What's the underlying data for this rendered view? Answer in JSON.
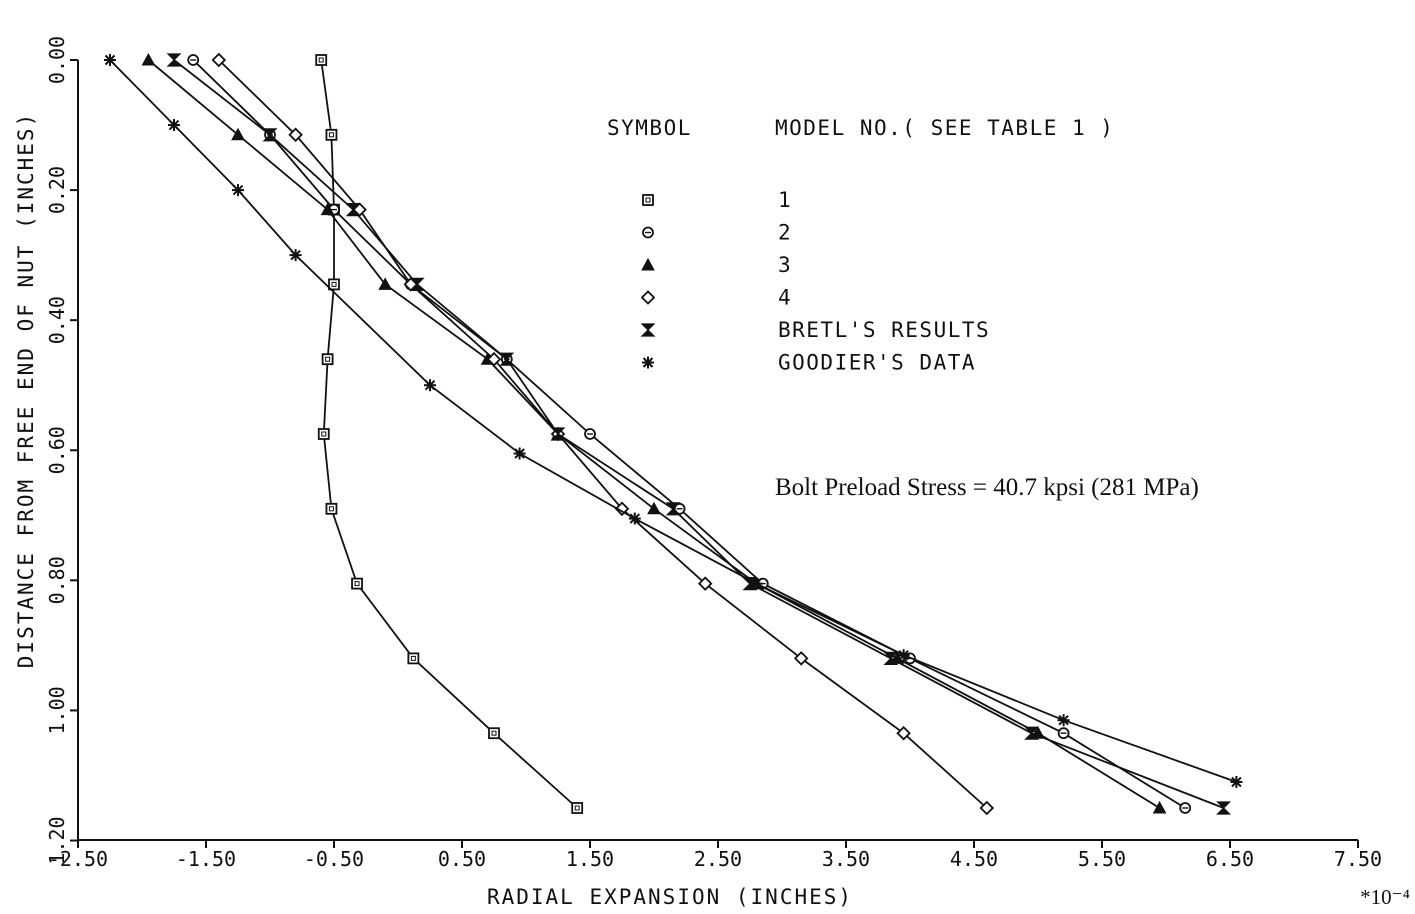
{
  "chart_data": {
    "type": "line",
    "xlabel": "RADIAL EXPANSION (INCHES)",
    "ylabel": "DISTANCE FROM FREE END OF NUT (INCHES)",
    "x_multiplier": "*10⁻⁴",
    "xlim": [
      -2.5,
      7.5
    ],
    "ylim": [
      1.2,
      0.0
    ],
    "y_inverted": true,
    "grid": false,
    "x_tick_labels": [
      "-2.50",
      "-1.50",
      "-0.50",
      "0.50",
      "1.50",
      "2.50",
      "3.50",
      "4.50",
      "5.50",
      "6.50",
      "7.50"
    ],
    "y_tick_labels": [
      "0.00",
      "0.20",
      "0.40",
      "0.60",
      "0.80",
      "1.00",
      "1.20"
    ],
    "legend_header": {
      "symbol": "SYMBOL",
      "model": "MODEL NO.( SEE TABLE 1 )"
    },
    "annotation": "Bolt Preload Stress = 40.7 kpsi (281 MPa)",
    "series": [
      {
        "name": "1",
        "marker": "square",
        "x": [
          -0.6,
          -0.52,
          -0.5,
          -0.5,
          -0.55,
          -0.58,
          -0.52,
          -0.32,
          0.12,
          0.75,
          1.4
        ],
        "y": [
          0.0,
          0.115,
          0.23,
          0.345,
          0.46,
          0.575,
          0.69,
          0.805,
          0.92,
          1.035,
          1.15
        ]
      },
      {
        "name": "2",
        "marker": "circle",
        "x": [
          -1.6,
          -1.0,
          -0.5,
          0.1,
          0.85,
          1.5,
          2.2,
          2.85,
          4.0,
          5.2,
          6.15
        ],
        "y": [
          0.0,
          0.115,
          0.23,
          0.345,
          0.46,
          0.575,
          0.69,
          0.805,
          0.92,
          1.035,
          1.15
        ]
      },
      {
        "name": "3",
        "marker": "triangle",
        "x": [
          -1.95,
          -1.25,
          -0.55,
          -0.1,
          0.7,
          1.25,
          2.0,
          2.8,
          3.9,
          5.0,
          5.95
        ],
        "y": [
          0.0,
          0.115,
          0.23,
          0.345,
          0.46,
          0.575,
          0.69,
          0.805,
          0.92,
          1.035,
          1.15
        ]
      },
      {
        "name": "4",
        "marker": "diamond",
        "x": [
          -1.4,
          -0.8,
          -0.3,
          0.1,
          0.75,
          1.25,
          1.75,
          2.4,
          3.15,
          3.95,
          4.6
        ],
        "y": [
          0.0,
          0.115,
          0.23,
          0.345,
          0.46,
          0.575,
          0.69,
          0.805,
          0.92,
          1.035,
          1.15
        ]
      },
      {
        "name": "BRETL'S RESULTS",
        "marker": "hourglass",
        "x": [
          -1.75,
          -1.0,
          -0.35,
          0.15,
          0.85,
          1.25,
          2.15,
          2.75,
          3.85,
          4.95,
          6.45
        ],
        "y": [
          0.0,
          0.115,
          0.23,
          0.345,
          0.46,
          0.575,
          0.69,
          0.805,
          0.92,
          1.035,
          1.15
        ]
      },
      {
        "name": "GOODIER'S DATA",
        "marker": "star",
        "x": [
          -2.25,
          -1.75,
          -1.25,
          -0.8,
          0.25,
          0.95,
          1.85,
          2.8,
          3.95,
          5.2,
          6.55
        ],
        "y": [
          0.0,
          0.1,
          0.2,
          0.3,
          0.5,
          0.605,
          0.705,
          0.805,
          0.915,
          1.015,
          1.11
        ]
      }
    ]
  }
}
